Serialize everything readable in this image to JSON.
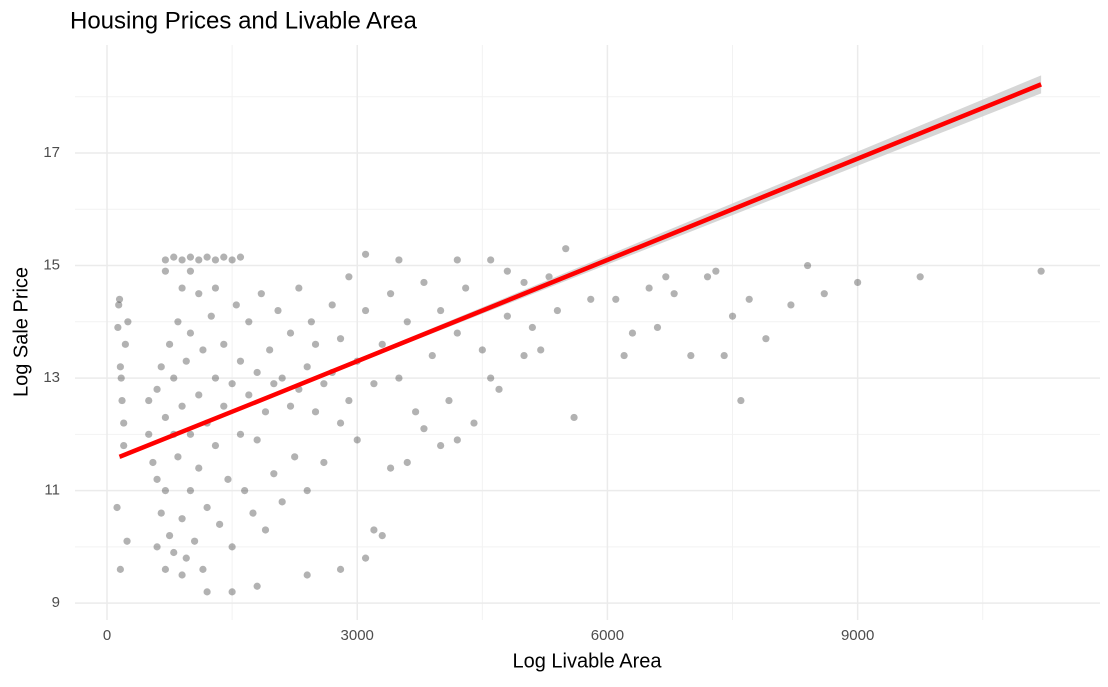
{
  "chart_data": {
    "type": "scatter",
    "title": "Housing Prices and Livable Area",
    "x_label": "Log Livable Area",
    "y_label": "Log Sale Price",
    "xlim": [
      -384,
      11906
    ],
    "ylim": [
      8.7,
      18.92
    ],
    "xticks": [
      0,
      3000,
      6000,
      9000
    ],
    "yticks": [
      9,
      11,
      13,
      15,
      17
    ],
    "x_minor_grid": [
      1500,
      4500,
      7500,
      10500
    ],
    "y_minor_grid": [
      10,
      12,
      14,
      16,
      18
    ],
    "grid": true,
    "series": [
      {
        "color": "#000000",
        "x": [
          130,
          140,
          150,
          160,
          170,
          180,
          200,
          120,
          160,
          240,
          200,
          220,
          250,
          700,
          800,
          900,
          1000,
          1100,
          1200,
          1300,
          1400,
          1500,
          1600,
          700,
          900,
          1100,
          1300,
          1000,
          500,
          500,
          550,
          600,
          600,
          650,
          650,
          700,
          700,
          750,
          750,
          800,
          800,
          800,
          850,
          850,
          900,
          900,
          950,
          950,
          1000,
          1000,
          1000,
          1050,
          1100,
          1100,
          1150,
          1150,
          1200,
          1200,
          1250,
          1300,
          1300,
          1350,
          1400,
          1400,
          1450,
          1500,
          1500,
          1550,
          1600,
          1600,
          1650,
          1700,
          1700,
          1750,
          1800,
          1800,
          1850,
          1900,
          1900,
          1950,
          2000,
          2000,
          2050,
          2100,
          2100,
          2200,
          2200,
          2250,
          2300,
          2300,
          2400,
          2400,
          2450,
          2500,
          2500,
          2600,
          2600,
          2700,
          2700,
          2800,
          2800,
          2900,
          2900,
          3000,
          3000,
          3100,
          3200,
          3300,
          3400,
          3400,
          3500,
          3600,
          3700,
          3800,
          3900,
          4000,
          4100,
          4200,
          4300,
          4500,
          4600,
          4800,
          5000,
          3100,
          3500,
          4200,
          4600,
          5000,
          5500,
          5600,
          5200,
          6200,
          6500,
          6700,
          6800,
          6600,
          7000,
          7200,
          7300,
          7500,
          7400,
          7600,
          7700,
          7900,
          8200,
          8400,
          8600,
          9000,
          9750,
          11200,
          6100,
          5800,
          5300,
          4800,
          4400,
          4000,
          3800,
          3200,
          3100,
          3300,
          2800,
          2400,
          1800,
          1500,
          1200,
          900,
          700,
          600,
          3600,
          4200,
          4700,
          5100,
          5400,
          6300
        ],
        "values": [
          13.9,
          14.3,
          14.4,
          13.2,
          13.0,
          12.6,
          12.2,
          10.7,
          9.6,
          10.1,
          11.8,
          13.6,
          14.0,
          15.1,
          15.15,
          15.1,
          15.15,
          15.1,
          15.15,
          15.1,
          15.15,
          15.1,
          15.15,
          14.9,
          14.6,
          14.5,
          14.6,
          14.9,
          12.0,
          12.6,
          11.5,
          12.8,
          11.2,
          13.2,
          10.6,
          12.3,
          11.0,
          13.6,
          10.2,
          12.0,
          13.0,
          9.9,
          11.6,
          14.0,
          12.5,
          10.5,
          13.3,
          9.8,
          12.0,
          11.0,
          13.8,
          10.1,
          12.7,
          11.4,
          13.5,
          9.6,
          12.2,
          10.7,
          14.1,
          11.8,
          13.0,
          10.4,
          12.5,
          13.6,
          11.2,
          12.9,
          10.0,
          14.3,
          12.0,
          13.3,
          11.0,
          12.7,
          14.0,
          10.6,
          13.1,
          11.9,
          14.5,
          12.4,
          10.3,
          13.5,
          12.9,
          11.3,
          14.2,
          13.0,
          10.8,
          12.5,
          13.8,
          11.6,
          14.6,
          12.8,
          13.2,
          11.0,
          14.0,
          12.4,
          13.6,
          12.9,
          11.5,
          14.3,
          13.1,
          12.2,
          13.7,
          14.8,
          12.6,
          13.3,
          11.9,
          14.2,
          12.9,
          13.6,
          14.5,
          11.4,
          13.0,
          14.0,
          12.4,
          14.7,
          13.4,
          14.2,
          12.6,
          13.8,
          14.6,
          13.5,
          13.0,
          14.1,
          13.4,
          15.2,
          15.1,
          15.1,
          15.1,
          14.7,
          15.3,
          12.3,
          13.5,
          13.4,
          14.6,
          14.8,
          14.5,
          13.9,
          13.4,
          14.8,
          14.9,
          14.1,
          13.4,
          12.6,
          14.4,
          13.7,
          14.3,
          15.0,
          14.5,
          14.7,
          14.8,
          14.9,
          14.4,
          14.4,
          14.8,
          14.9,
          12.2,
          11.8,
          12.1,
          10.3,
          9.8,
          10.2,
          9.6,
          9.5,
          9.3,
          9.2,
          9.2,
          9.5,
          9.6,
          10.0,
          11.5,
          11.9,
          12.8,
          13.9,
          14.2,
          13.8
        ]
      }
    ],
    "fit_line": {
      "color": "#ff0000",
      "band_color": "#cccccc",
      "x": [
        150,
        2000,
        11200
      ],
      "values": [
        11.6,
        12.7,
        18.22
      ],
      "lower": [
        11.56,
        12.68,
        18.06
      ],
      "upper": [
        11.64,
        12.72,
        18.38
      ]
    }
  }
}
